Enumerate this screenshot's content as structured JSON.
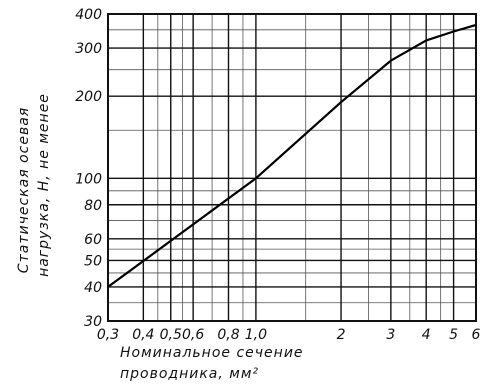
{
  "chart_data": {
    "type": "line",
    "x_scale": "log",
    "y_scale": "log",
    "xlim": [
      0.3,
      6
    ],
    "ylim": [
      30,
      400
    ],
    "x_ticks": [
      0.3,
      0.4,
      0.5,
      0.6,
      0.8,
      1.0,
      2,
      3,
      4,
      5,
      6
    ],
    "x_tick_labels": [
      "0,3",
      "0,4",
      "0,5",
      "0,6",
      "0,8",
      "1,0",
      "2",
      "3",
      "4",
      "5",
      "6"
    ],
    "y_ticks": [
      30,
      40,
      50,
      60,
      80,
      100,
      200,
      300,
      400
    ],
    "y_tick_labels": [
      "30",
      "40",
      "50",
      "60",
      "80",
      "100",
      "200",
      "300",
      "400"
    ],
    "xlabel_lines": [
      "Номинальное сечение",
      "проводника, мм²"
    ],
    "ylabel_lines": [
      "Статическая осевая",
      "нагрузка, Н, не менее"
    ],
    "grid": true,
    "series": [
      {
        "x": [
          0.3,
          1.0,
          2.0,
          3.0,
          4.0,
          5.0,
          6.0
        ],
        "y": [
          40,
          100,
          190,
          270,
          320,
          345,
          365
        ]
      }
    ]
  }
}
